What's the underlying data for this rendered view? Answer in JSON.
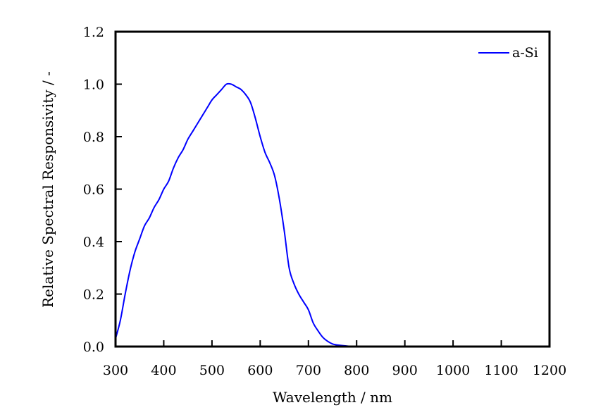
{
  "chart_data": {
    "type": "line",
    "title": "",
    "xlabel": "Wavelength / nm",
    "ylabel": "Relative Spectral Responsivity / -",
    "xlim": [
      300,
      1200
    ],
    "ylim": [
      0.0,
      1.2
    ],
    "x_ticks": [
      "300",
      "400",
      "500",
      "600",
      "700",
      "800",
      "900",
      "1000",
      "1100",
      "1200"
    ],
    "y_ticks": [
      "0.0",
      "0.2",
      "0.4",
      "0.6",
      "0.8",
      "1.0",
      "1.2"
    ],
    "grid": false,
    "legend_position": "top-right",
    "series": [
      {
        "name": "a-Si",
        "color": "#0000ff",
        "x": [
          300,
          310,
          320,
          330,
          340,
          350,
          360,
          370,
          380,
          390,
          400,
          410,
          420,
          430,
          440,
          450,
          460,
          470,
          480,
          490,
          500,
          510,
          520,
          530,
          540,
          550,
          560,
          570,
          580,
          590,
          600,
          610,
          620,
          630,
          640,
          650,
          660,
          670,
          680,
          690,
          700,
          710,
          720,
          730,
          740,
          750,
          760,
          780,
          800,
          850,
          900
        ],
        "values": [
          0.03,
          0.1,
          0.2,
          0.29,
          0.36,
          0.41,
          0.46,
          0.49,
          0.53,
          0.56,
          0.6,
          0.63,
          0.68,
          0.72,
          0.75,
          0.79,
          0.82,
          0.85,
          0.88,
          0.91,
          0.94,
          0.96,
          0.98,
          1.0,
          1.0,
          0.99,
          0.98,
          0.96,
          0.93,
          0.87,
          0.8,
          0.74,
          0.7,
          0.65,
          0.56,
          0.44,
          0.3,
          0.24,
          0.2,
          0.17,
          0.14,
          0.09,
          0.06,
          0.035,
          0.02,
          0.01,
          0.006,
          0.002,
          0.0,
          0.0,
          0.0
        ]
      }
    ]
  }
}
